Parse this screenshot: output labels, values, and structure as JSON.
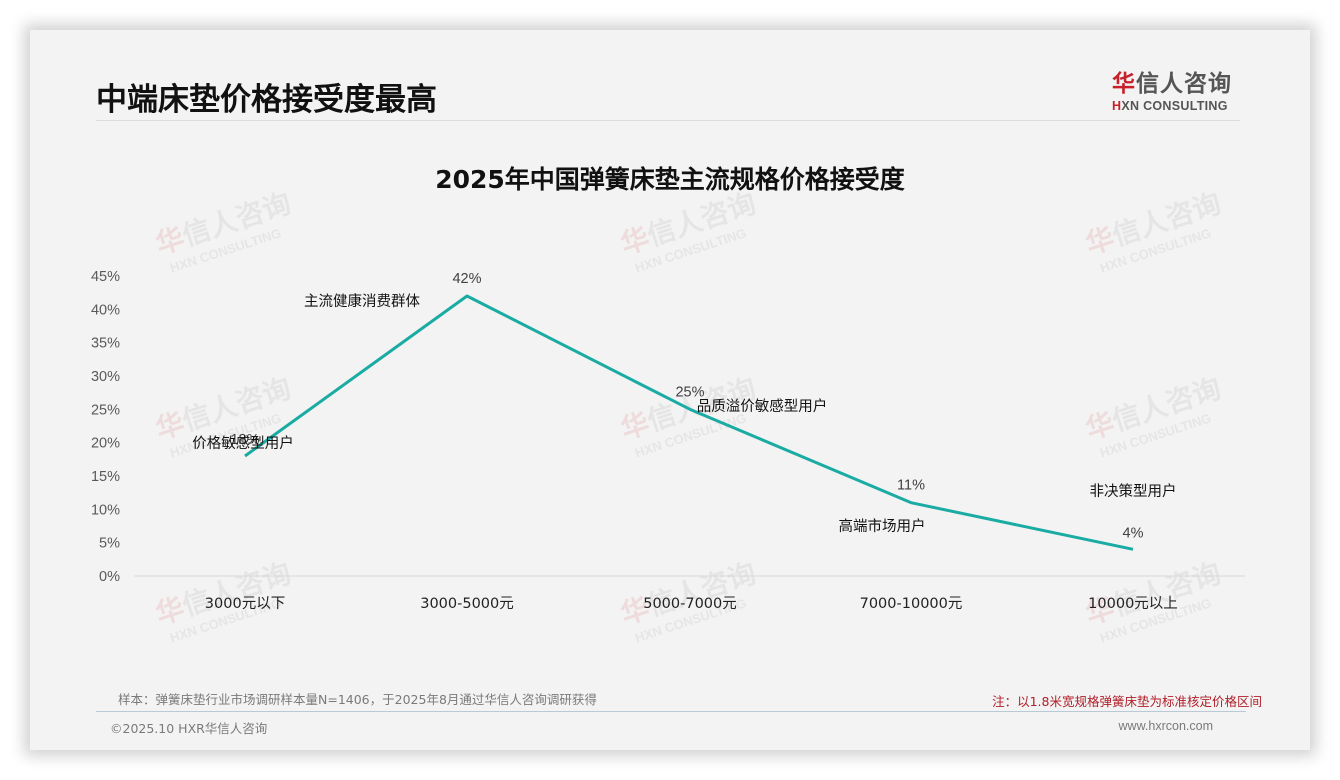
{
  "page": {
    "title": "中端床垫价格接受度最高",
    "logo": {
      "cn_red": "华",
      "cn_rest": "信人咨询",
      "en_prefix": "H",
      "en_rest": "XN CONSULTING"
    },
    "watermark": {
      "cn_red": "华",
      "cn_rest": "信人咨询",
      "en": "HXN CONSULTING"
    },
    "footer": {
      "sample": "样本：弹簧床垫行业市场调研样本量N=1406，于2025年8月通过华信人咨询调研获得",
      "note": "注：以1.8米宽规格弹簧床垫为标准核定价格区间",
      "copyright": "©2025.10 HXR华信人咨询",
      "website": "www.hxrcon.com"
    }
  },
  "colors": {
    "line": "#1aaba3",
    "note": "#b0202a",
    "brand_red": "#c8202a",
    "background": "#f3f3f3"
  },
  "chart_data": {
    "type": "line",
    "title": "2025年中国弹簧床垫主流规格价格接受度",
    "xlabel": "",
    "ylabel": "",
    "categories": [
      "3000元以下",
      "3000-5000元",
      "5000-7000元",
      "7000-10000元",
      "10000元以上"
    ],
    "series": [
      {
        "name": "价格接受度",
        "values": [
          18,
          42,
          25,
          11,
          4
        ]
      }
    ],
    "value_labels": [
      "18%",
      "42%",
      "25%",
      "11%",
      "4%"
    ],
    "annotations": [
      "价格敏感型用户",
      "主流健康消费群体",
      "品质溢价敏感型用户",
      "高端市场用户",
      "非决策型用户"
    ],
    "yticks": [
      "0%",
      "5%",
      "10%",
      "15%",
      "20%",
      "25%",
      "30%",
      "35%",
      "40%",
      "45%"
    ],
    "ylim": [
      0,
      45
    ],
    "grid": false,
    "legend": "none"
  }
}
